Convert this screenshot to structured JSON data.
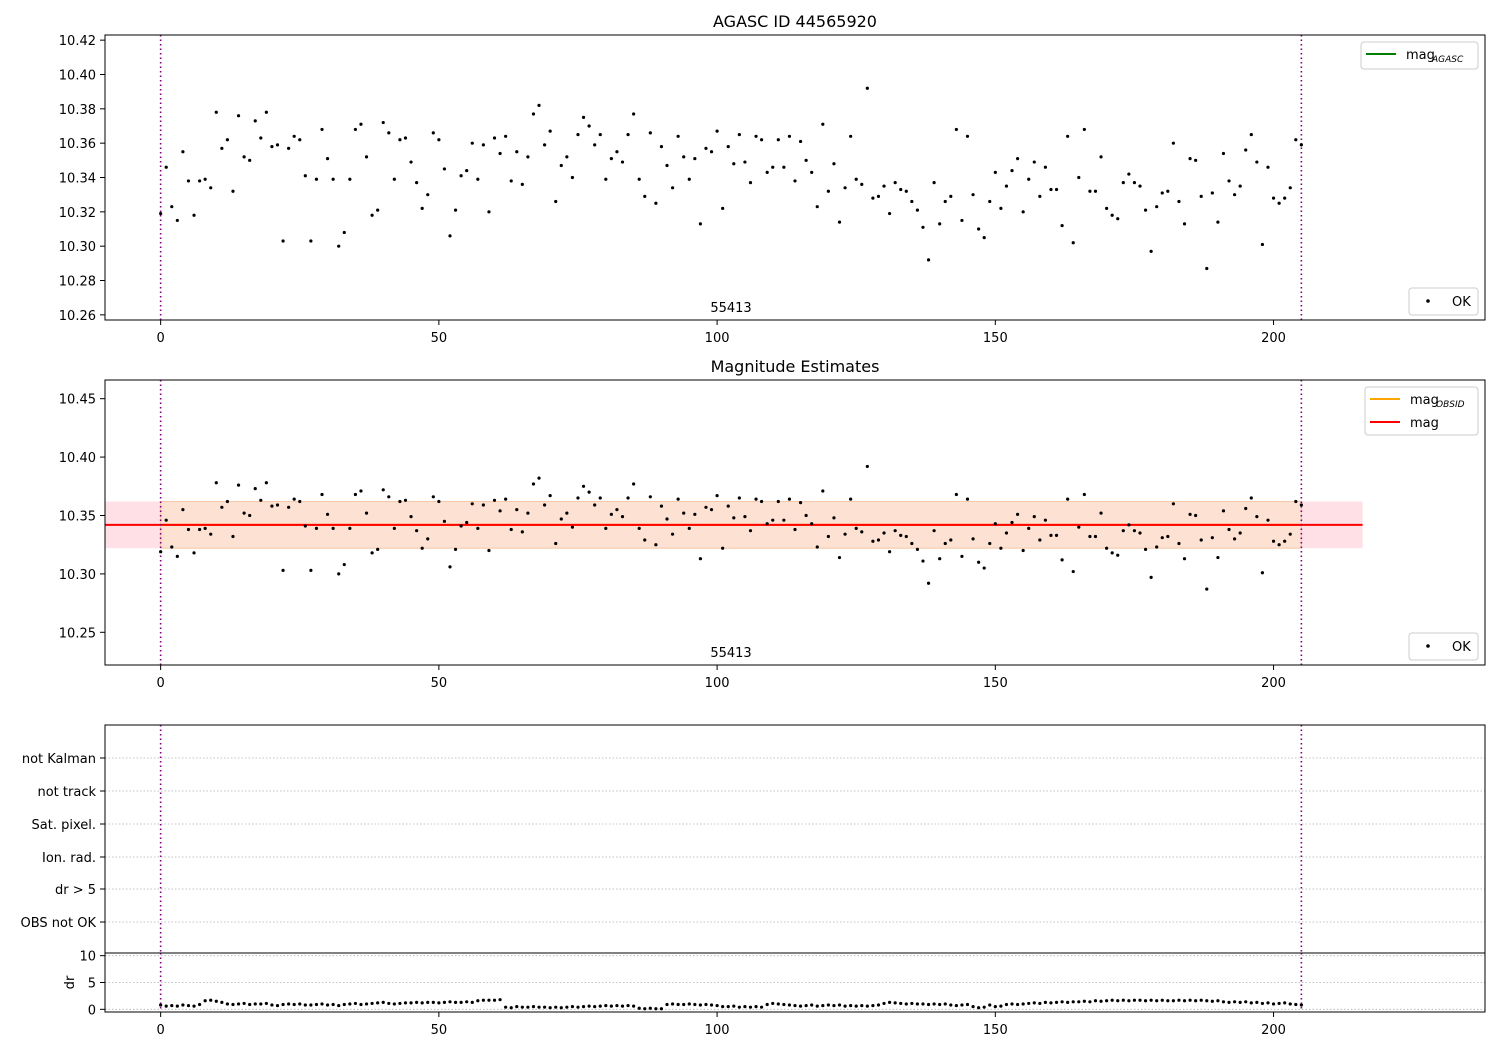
{
  "chart_data": [
    {
      "type": "scatter",
      "title": "AGASC ID 44565920",
      "annotation": "55413",
      "xlim": [
        -10,
        238
      ],
      "ylim": [
        10.257,
        10.423
      ],
      "xticks": [
        0,
        50,
        100,
        150,
        200
      ],
      "yticks": [
        10.26,
        10.28,
        10.3,
        10.32,
        10.34,
        10.36,
        10.38,
        10.4,
        10.42
      ],
      "ytick_labels": [
        "10.26",
        "10.28",
        "10.30",
        "10.32",
        "10.34",
        "10.36",
        "10.38",
        "10.40",
        "10.42"
      ],
      "vlines": [
        0,
        205
      ],
      "vline_color": "#800080",
      "legend_lines": [
        {
          "label": "mag",
          "subscript": "AGASC",
          "color": "#008000"
        }
      ],
      "legend_points": [
        {
          "label": "OK",
          "color": "#000000"
        }
      ],
      "grid": false,
      "series": [
        {
          "name": "OK",
          "color": "#000000",
          "x_start": 0,
          "x_step": 1,
          "values": [
            10.319,
            10.346,
            10.323,
            10.315,
            10.355,
            10.338,
            10.318,
            10.338,
            10.339,
            10.334,
            10.378,
            10.357,
            10.362,
            10.332,
            10.376,
            10.352,
            10.35,
            10.373,
            10.363,
            10.378,
            10.358,
            10.359,
            10.303,
            10.357,
            10.364,
            10.362,
            10.341,
            10.303,
            10.339,
            10.368,
            10.351,
            10.339,
            10.3,
            10.308,
            10.339,
            10.368,
            10.371,
            10.352,
            10.318,
            10.321,
            10.372,
            10.366,
            10.339,
            10.362,
            10.363,
            10.349,
            10.337,
            10.322,
            10.33,
            10.366,
            10.362,
            10.345,
            10.306,
            10.321,
            10.341,
            10.344,
            10.36,
            10.339,
            10.359,
            10.32,
            10.363,
            10.354,
            10.364,
            10.338,
            10.355,
            10.336,
            10.352,
            10.377,
            10.382,
            10.359,
            10.367,
            10.326,
            10.347,
            10.352,
            10.34,
            10.365,
            10.375,
            10.37,
            10.359,
            10.365,
            10.339,
            10.351,
            10.355,
            10.349,
            10.365,
            10.377,
            10.339,
            10.329,
            10.366,
            10.325,
            10.358,
            10.347,
            10.334,
            10.364,
            10.352,
            10.339,
            10.351,
            10.313,
            10.357,
            10.355,
            10.367,
            10.322,
            10.358,
            10.348,
            10.365,
            10.349,
            10.337,
            10.364,
            10.362,
            10.343,
            10.346,
            10.362,
            10.346,
            10.364,
            10.338,
            10.361,
            10.35,
            10.343,
            10.323,
            10.371,
            10.332,
            10.348,
            10.314,
            10.334,
            10.364,
            10.339,
            10.336,
            10.392,
            10.328,
            10.329,
            10.335,
            10.319,
            10.337,
            10.333,
            10.332,
            10.326,
            10.321,
            10.311,
            10.292,
            10.337,
            10.313,
            10.326,
            10.329,
            10.368,
            10.315,
            10.364,
            10.33,
            10.31,
            10.305,
            10.326,
            10.343,
            10.322,
            10.335,
            10.344,
            10.351,
            10.32,
            10.339,
            10.349,
            10.329,
            10.346,
            10.333,
            10.333,
            10.312,
            10.364,
            10.302,
            10.34,
            10.368,
            10.332,
            10.332,
            10.352,
            10.322,
            10.318,
            10.316,
            10.337,
            10.342,
            10.337,
            10.335,
            10.321,
            10.297,
            10.323,
            10.331,
            10.332,
            10.36,
            10.326,
            10.313,
            10.351,
            10.35,
            10.329,
            10.287,
            10.331,
            10.314,
            10.354,
            10.338,
            10.33,
            10.335,
            10.356,
            10.365,
            10.349,
            10.301,
            10.346,
            10.328,
            10.325,
            10.328,
            10.334,
            10.362,
            10.359
          ]
        }
      ]
    },
    {
      "type": "scatter",
      "title": "Magnitude Estimates",
      "annotation": "55413",
      "xlim": [
        -10,
        238
      ],
      "ylim": [
        10.222,
        10.466
      ],
      "xticks": [
        0,
        50,
        100,
        150,
        200
      ],
      "yticks": [
        10.25,
        10.3,
        10.35,
        10.4,
        10.45
      ],
      "ytick_labels": [
        "10.25",
        "10.30",
        "10.35",
        "10.40",
        "10.45"
      ],
      "vlines": [
        0,
        205
      ],
      "vline_color": "#800080",
      "band": {
        "x0": -10,
        "x1": 216,
        "y0": 10.322,
        "y1": 10.362
      },
      "band_colors": {
        "outer": "#ffe0e6",
        "inner": "#fde1d2",
        "edge": "#f6c8a6"
      },
      "orange_line": {
        "x0": 0,
        "x1": 205,
        "y": 10.342,
        "color": "#ffa500"
      },
      "red_line": {
        "x0": -10,
        "x1": 216,
        "y": 10.342,
        "color": "#ff0000"
      },
      "legend_lines": [
        {
          "label": "mag",
          "subscript": "OBSID",
          "color": "#ffa500"
        },
        {
          "label": "mag",
          "subscript": "",
          "color": "#ff0000"
        }
      ],
      "legend_points": [
        {
          "label": "OK",
          "color": "#000000"
        }
      ],
      "grid": false,
      "series": [
        {
          "name": "OK",
          "source": "same as panel 1",
          "color": "#000000"
        }
      ]
    },
    {
      "type": "table",
      "title": "",
      "categories": [
        "not Kalman",
        "not track",
        "Sat. pixel.",
        "Ion. rad.",
        "dr > 5",
        "OBS not OK"
      ],
      "vlines": [
        0,
        205
      ],
      "xlim": [
        -10,
        238
      ],
      "grid": true,
      "flags": []
    },
    {
      "type": "scatter",
      "title": "",
      "ylabel": "dr",
      "xlim": [
        -10,
        238
      ],
      "ylim": [
        -0.5,
        10.5
      ],
      "xticks": [
        0,
        50,
        100,
        150,
        200
      ],
      "yticks": [
        0,
        5,
        10
      ],
      "ytick_labels": [
        "0",
        "5",
        "10"
      ],
      "vlines": [
        0,
        205
      ],
      "grid": true,
      "series": [
        {
          "name": "dr",
          "color": "#000000",
          "x_start": 0,
          "x_step": 1,
          "values": [
            0.8,
            0.6,
            0.7,
            0.6,
            0.8,
            0.7,
            0.6,
            0.9,
            1.6,
            1.7,
            1.5,
            1.3,
            1.0,
            0.9,
            1.0,
            1.1,
            0.9,
            1.0,
            1.0,
            1.1,
            0.8,
            0.7,
            0.9,
            1.0,
            0.9,
            1.0,
            0.8,
            0.8,
            0.9,
            1.0,
            0.8,
            0.9,
            0.7,
            0.9,
            1.0,
            1.1,
            0.9,
            1.0,
            1.1,
            1.2,
            1.3,
            1.1,
            1.0,
            1.1,
            1.2,
            1.2,
            1.3,
            1.2,
            1.3,
            1.3,
            1.2,
            1.3,
            1.4,
            1.3,
            1.3,
            1.4,
            1.3,
            1.6,
            1.7,
            1.7,
            1.7,
            1.8,
            0.4,
            0.3,
            0.5,
            0.4,
            0.4,
            0.5,
            0.4,
            0.4,
            0.3,
            0.4,
            0.3,
            0.4,
            0.5,
            0.4,
            0.5,
            0.6,
            0.5,
            0.6,
            0.7,
            0.6,
            0.7,
            0.6,
            0.7,
            0.6,
            0.2,
            0.1,
            0.2,
            0.1,
            0.1,
            0.9,
            1.0,
            0.9,
            0.9,
            1.0,
            0.9,
            0.8,
            0.9,
            0.8,
            0.7,
            0.5,
            0.5,
            0.6,
            0.4,
            0.5,
            0.4,
            0.5,
            0.4,
            0.9,
            1.1,
            1.0,
            0.9,
            0.8,
            0.7,
            0.6,
            0.7,
            0.8,
            0.6,
            0.7,
            0.8,
            0.7,
            0.8,
            0.6,
            0.7,
            0.6,
            0.7,
            0.6,
            0.7,
            0.8,
            1.1,
            1.3,
            1.2,
            1.1,
            1.0,
            1.1,
            1.0,
            1.0,
            0.9,
            1.0,
            0.9,
            1.0,
            0.8,
            0.7,
            0.8,
            0.9,
            0.5,
            0.3,
            0.4,
            0.8,
            0.5,
            0.6,
            0.9,
            1.0,
            0.9,
            1.0,
            1.1,
            1.2,
            1.1,
            1.3,
            1.2,
            1.3,
            1.4,
            1.3,
            1.4,
            1.4,
            1.5,
            1.4,
            1.6,
            1.5,
            1.6,
            1.7,
            1.6,
            1.7,
            1.6,
            1.7,
            1.7,
            1.6,
            1.7,
            1.6,
            1.7,
            1.6,
            1.6,
            1.7,
            1.6,
            1.7,
            1.6,
            1.7,
            1.6,
            1.5,
            1.6,
            1.4,
            1.3,
            1.4,
            1.3,
            1.4,
            1.2,
            1.3,
            1.1,
            1.2,
            1.0,
            1.1,
            1.2,
            1.0,
            0.9,
            0.8
          ]
        }
      ]
    }
  ]
}
